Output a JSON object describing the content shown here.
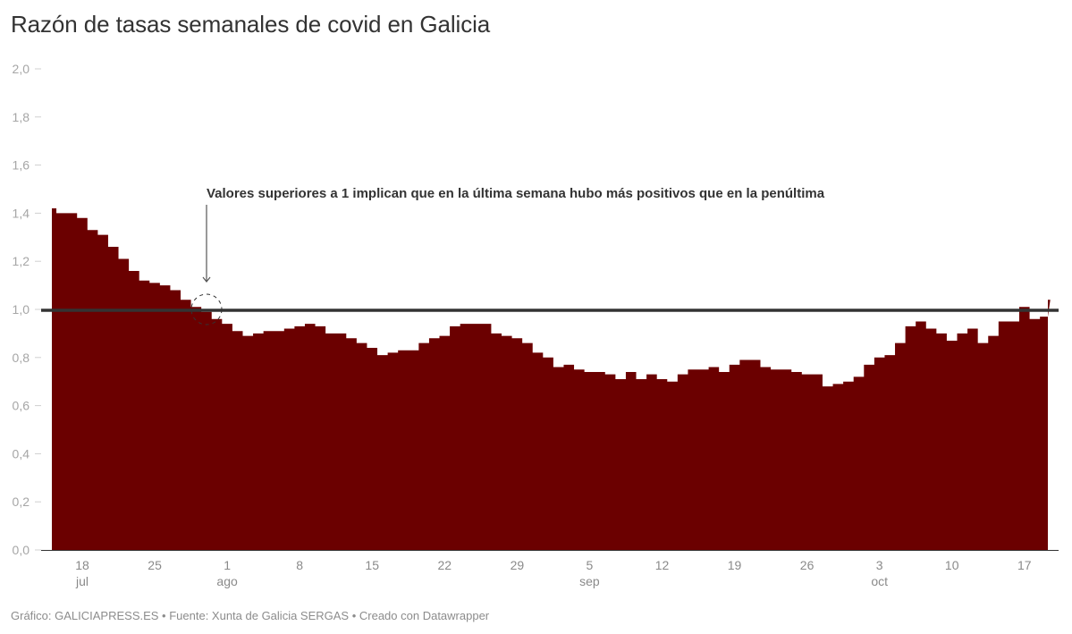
{
  "title": "Razón de tasas semanales de covid en Galicia",
  "footer": "Gráfico: GALICIAPRESS.ES • Fuente: Xunta de Galicia SERGAS • Creado con Datawrapper",
  "colors": {
    "bar": "#6b0000",
    "reference_line": "#333333",
    "axis_text": "#a6a6a6",
    "title": "#333333"
  },
  "annotation": {
    "text": "Valores superiores a 1 implican que en la última semana hubo más positivos que en la penúltima",
    "target_date": "30 jul",
    "target_value": 1.0
  },
  "chart_data": {
    "type": "bar",
    "title": "Razón de tasas semanales de covid en Galicia",
    "xlabel": "",
    "ylabel": "",
    "ylim": [
      0,
      2.0
    ],
    "yticks": [
      "0,0",
      "0,2",
      "0,4",
      "0,6",
      "0,8",
      "1,0",
      "1,2",
      "1,4",
      "1,6",
      "1,8",
      "2,0"
    ],
    "ytick_values": [
      0,
      0.2,
      0.4,
      0.6,
      0.8,
      1.0,
      1.2,
      1.4,
      1.6,
      1.8,
      2.0
    ],
    "xticks": [
      {
        "day": "18",
        "month": "jul",
        "index": 3
      },
      {
        "day": "25",
        "month": "",
        "index": 10
      },
      {
        "day": "1",
        "month": "ago",
        "index": 17
      },
      {
        "day": "8",
        "month": "",
        "index": 24
      },
      {
        "day": "15",
        "month": "",
        "index": 31
      },
      {
        "day": "22",
        "month": "",
        "index": 38
      },
      {
        "day": "29",
        "month": "",
        "index": 45
      },
      {
        "day": "5",
        "month": "sep",
        "index": 52
      },
      {
        "day": "12",
        "month": "",
        "index": 59
      },
      {
        "day": "19",
        "month": "",
        "index": 66
      },
      {
        "day": "26",
        "month": "",
        "index": 73
      },
      {
        "day": "3",
        "month": "oct",
        "index": 80
      },
      {
        "day": "10",
        "month": "",
        "index": 87
      },
      {
        "day": "17",
        "month": "",
        "index": 94
      }
    ],
    "reference_line": 1.0,
    "grid": false,
    "legend": "none",
    "start_date": "15 jul",
    "end_date": "20 oct",
    "categories": [
      "15 jul",
      "16 jul",
      "17 jul",
      "18 jul",
      "19 jul",
      "20 jul",
      "21 jul",
      "22 jul",
      "23 jul",
      "24 jul",
      "25 jul",
      "26 jul",
      "27 jul",
      "28 jul",
      "29 jul",
      "30 jul",
      "31 jul",
      "1 ago",
      "2 ago",
      "3 ago",
      "4 ago",
      "5 ago",
      "6 ago",
      "7 ago",
      "8 ago",
      "9 ago",
      "10 ago",
      "11 ago",
      "12 ago",
      "13 ago",
      "14 ago",
      "15 ago",
      "16 ago",
      "17 ago",
      "18 ago",
      "19 ago",
      "20 ago",
      "21 ago",
      "22 ago",
      "23 ago",
      "24 ago",
      "25 ago",
      "26 ago",
      "27 ago",
      "28 ago",
      "29 ago",
      "30 ago",
      "31 ago",
      "1 sep",
      "2 sep",
      "3 sep",
      "4 sep",
      "5 sep",
      "6 sep",
      "7 sep",
      "8 sep",
      "9 sep",
      "10 sep",
      "11 sep",
      "12 sep",
      "13 sep",
      "14 sep",
      "15 sep",
      "16 sep",
      "17 sep",
      "18 sep",
      "19 sep",
      "20 sep",
      "21 sep",
      "22 sep",
      "23 sep",
      "24 sep",
      "25 sep",
      "26 sep",
      "27 sep",
      "28 sep",
      "29 sep",
      "30 sep",
      "1 oct",
      "2 oct",
      "3 oct",
      "4 oct",
      "5 oct",
      "6 oct",
      "7 oct",
      "8 oct",
      "9 oct",
      "10 oct",
      "11 oct",
      "12 oct",
      "13 oct",
      "14 oct",
      "15 oct",
      "16 oct",
      "17 oct",
      "18 oct",
      "19 oct",
      "20 oct"
    ],
    "values": [
      1.42,
      1.4,
      1.4,
      1.38,
      1.33,
      1.31,
      1.26,
      1.21,
      1.16,
      1.12,
      1.11,
      1.1,
      1.08,
      1.04,
      1.01,
      0.99,
      0.96,
      0.94,
      0.91,
      0.89,
      0.9,
      0.91,
      0.91,
      0.92,
      0.93,
      0.94,
      0.93,
      0.9,
      0.9,
      0.88,
      0.86,
      0.84,
      0.81,
      0.82,
      0.83,
      0.83,
      0.86,
      0.88,
      0.89,
      0.93,
      0.94,
      0.94,
      0.94,
      0.9,
      0.89,
      0.88,
      0.86,
      0.82,
      0.8,
      0.76,
      0.77,
      0.75,
      0.74,
      0.74,
      0.73,
      0.71,
      0.74,
      0.71,
      0.73,
      0.71,
      0.7,
      0.73,
      0.75,
      0.75,
      0.76,
      0.74,
      0.77,
      0.79,
      0.79,
      0.76,
      0.75,
      0.75,
      0.74,
      0.73,
      0.73,
      0.68,
      0.69,
      0.7,
      0.72,
      0.77,
      0.8,
      0.81,
      0.86,
      0.93,
      0.95,
      0.92,
      0.9,
      0.87,
      0.9,
      0.92,
      0.86,
      0.89,
      0.95,
      0.95,
      1.01,
      0.96,
      0.97,
      1.04
    ]
  }
}
